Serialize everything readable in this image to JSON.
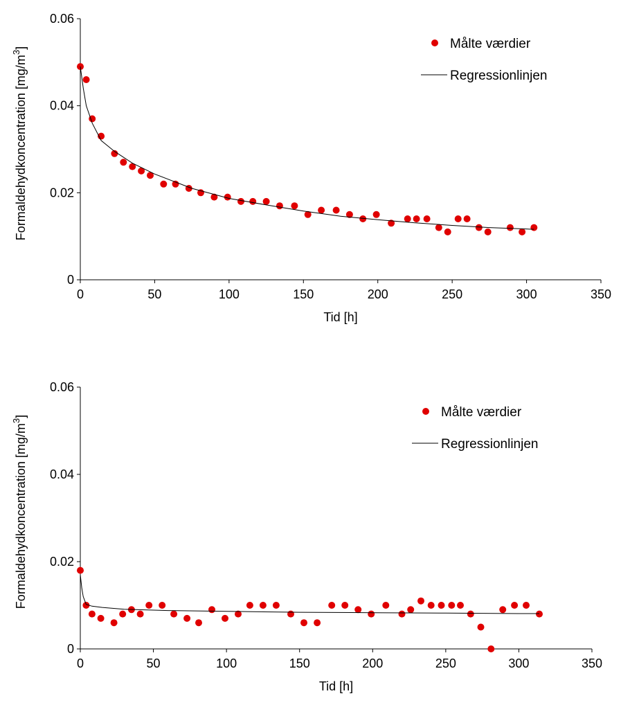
{
  "chart_data": [
    {
      "type": "scatter",
      "xlabel": "Tid [h]",
      "ylabel": "Formaldehydkoncentration [mg/m",
      "ylabel_sup": "3",
      "ylabel_tail": "]",
      "xlim": [
        0,
        350
      ],
      "ylim": [
        0,
        0.06
      ],
      "xticks": [
        "0",
        "50",
        "100",
        "150",
        "200",
        "250",
        "300",
        "350"
      ],
      "yticks": [
        "0",
        "0.02",
        "0.04",
        "0.06"
      ],
      "grid": false,
      "legend_position": "top-right",
      "series": [
        {
          "name": "Målte værdier",
          "kind": "scatter",
          "color": "#e00000",
          "x": [
            0,
            4,
            8,
            14,
            23,
            29,
            35,
            41,
            47,
            56,
            64,
            73,
            81,
            90,
            99,
            108,
            116,
            125,
            134,
            144,
            153,
            162,
            172,
            181,
            190,
            199,
            209,
            220,
            226,
            233,
            241,
            247,
            254,
            260,
            268,
            274,
            289,
            297,
            305
          ],
          "y": [
            0.049,
            0.046,
            0.037,
            0.033,
            0.029,
            0.027,
            0.026,
            0.025,
            0.024,
            0.022,
            0.022,
            0.021,
            0.02,
            0.019,
            0.019,
            0.018,
            0.018,
            0.018,
            0.017,
            0.017,
            0.015,
            0.016,
            0.016,
            0.015,
            0.014,
            0.015,
            0.013,
            0.014,
            0.014,
            0.014,
            0.012,
            0.011,
            0.014,
            0.014,
            0.012,
            0.011,
            0.012,
            0.011,
            0.012
          ]
        },
        {
          "name": "Regressionlinjen",
          "kind": "line",
          "color": "#000000",
          "x": [
            0,
            2,
            4,
            8,
            14,
            23,
            35,
            50,
            75,
            100,
            125,
            150,
            175,
            200,
            225,
            250,
            275,
            305
          ],
          "y": [
            0.049,
            0.044,
            0.04,
            0.036,
            0.032,
            0.0295,
            0.0268,
            0.0243,
            0.021,
            0.0187,
            0.0172,
            0.0158,
            0.0146,
            0.0138,
            0.0131,
            0.0125,
            0.012,
            0.0116
          ]
        }
      ]
    },
    {
      "type": "scatter",
      "xlabel": "Tid [h]",
      "ylabel": "Formaldehydkoncentration [mg/m",
      "ylabel_sup": "3",
      "ylabel_tail": "]",
      "xlim": [
        0,
        350
      ],
      "ylim": [
        0,
        0.06
      ],
      "xticks": [
        "0",
        "50",
        "100",
        "150",
        "200",
        "250",
        "300",
        "350"
      ],
      "yticks": [
        "0",
        "0.02",
        "0.04",
        "0.06"
      ],
      "grid": false,
      "legend_position": "top-right",
      "series": [
        {
          "name": "Målte værdier",
          "kind": "scatter",
          "color": "#e00000",
          "x": [
            0,
            4,
            8,
            14,
            23,
            29,
            35,
            41,
            47,
            56,
            64,
            73,
            81,
            90,
            99,
            108,
            116,
            125,
            134,
            144,
            153,
            162,
            172,
            181,
            190,
            199,
            209,
            220,
            226,
            233,
            240,
            247,
            254,
            260,
            267,
            274,
            281,
            289,
            297,
            305,
            314
          ],
          "y": [
            0.018,
            0.01,
            0.008,
            0.007,
            0.006,
            0.008,
            0.009,
            0.008,
            0.01,
            0.01,
            0.008,
            0.007,
            0.006,
            0.009,
            0.007,
            0.008,
            0.01,
            0.01,
            0.01,
            0.008,
            0.006,
            0.006,
            0.01,
            0.01,
            0.009,
            0.008,
            0.01,
            0.008,
            0.009,
            0.011,
            0.01,
            0.01,
            0.01,
            0.01,
            0.008,
            0.005,
            0.0,
            0.009,
            0.01,
            0.01,
            0.008
          ]
        },
        {
          "name": "Regressionlinjen",
          "kind": "line",
          "color": "#000000",
          "x": [
            0,
            1,
            2,
            4,
            8,
            15,
            30,
            60,
            100,
            150,
            200,
            250,
            300,
            314
          ],
          "y": [
            0.017,
            0.014,
            0.012,
            0.0102,
            0.0098,
            0.0095,
            0.0091,
            0.0088,
            0.0086,
            0.0084,
            0.0083,
            0.0082,
            0.0081,
            0.0081
          ]
        }
      ]
    }
  ]
}
